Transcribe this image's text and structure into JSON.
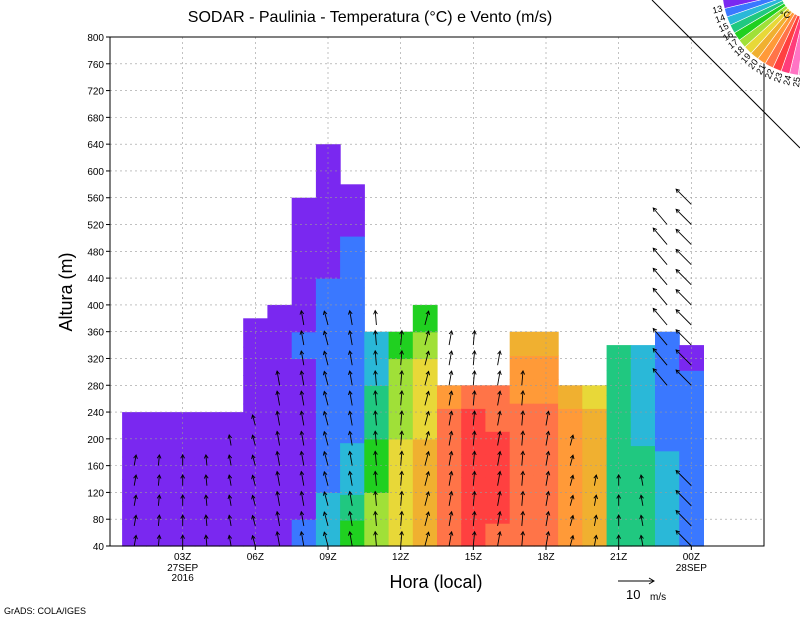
{
  "chart_data": {
    "type": "heatmap",
    "title": "SODAR - Paulinia - Temperatura (°C) e Vento (m/s)",
    "xlabel": "Hora (local)",
    "ylabel": "Altura (m)",
    "ylim": [
      40,
      800
    ],
    "xlim_hours": [
      -3,
      24
    ],
    "y_ticks": [
      40,
      80,
      120,
      160,
      200,
      240,
      280,
      320,
      360,
      400,
      440,
      480,
      520,
      560,
      600,
      640,
      680,
      720,
      760,
      800
    ],
    "x_ticks": [
      {
        "hour": 0,
        "label": "03Z",
        "sub": [
          "27SEP",
          "2016"
        ]
      },
      {
        "hour": 3,
        "label": "06Z",
        "sub": []
      },
      {
        "hour": 6,
        "label": "09Z",
        "sub": []
      },
      {
        "hour": 9,
        "label": "12Z",
        "sub": []
      },
      {
        "hour": 12,
        "label": "15Z",
        "sub": []
      },
      {
        "hour": 15,
        "label": "18Z",
        "sub": []
      },
      {
        "hour": 18,
        "label": "21Z",
        "sub": []
      },
      {
        "hour": 21,
        "label": "00Z",
        "sub": [
          "28SEP"
        ]
      }
    ],
    "grid": true,
    "colorbar": {
      "unit": "°C",
      "levels": [
        25,
        24,
        23,
        22,
        21,
        20,
        19,
        18,
        17,
        16,
        15,
        14,
        13
      ],
      "colors": [
        "#f3c0e0",
        "#ff74c4",
        "#ff3c7a",
        "#ff4040",
        "#ff7448",
        "#ff9a38",
        "#f0b030",
        "#e8d838",
        "#a0e038",
        "#20d020",
        "#20c880",
        "#2ab8d8",
        "#3a78ff",
        "#7a28f0",
        "#a020e0"
      ]
    },
    "temperature_columns": [
      {
        "hour": -2,
        "top": 240,
        "temps": [
          13.2,
          13.2,
          13.3,
          13.3,
          13.2,
          13.2
        ]
      },
      {
        "hour": -1,
        "top": 240,
        "temps": [
          13.2,
          13.2,
          13.3,
          13.3,
          13.2,
          13.2
        ]
      },
      {
        "hour": 0,
        "top": 240,
        "temps": [
          13.2,
          13.3,
          13.4,
          13.4,
          13.3,
          13.2
        ]
      },
      {
        "hour": 1,
        "top": 240,
        "temps": [
          13.3,
          13.4,
          13.4,
          13.4,
          13.3,
          13.2
        ]
      },
      {
        "hour": 2,
        "top": 240,
        "temps": [
          13.3,
          13.4,
          13.5,
          13.5,
          13.4,
          13.3
        ]
      },
      {
        "hour": 3,
        "top": 380,
        "temps": [
          13.4,
          13.5,
          13.6,
          13.6,
          13.5,
          13.4,
          13.3,
          13.2
        ]
      },
      {
        "hour": 4,
        "top": 400,
        "temps": [
          13.5,
          13.6,
          13.7,
          13.6,
          13.5,
          13.5,
          13.4,
          13.3,
          13.2
        ]
      },
      {
        "hour": 5,
        "top": 560,
        "temps": [
          14.3,
          13.8,
          13.9,
          13.9,
          13.8,
          13.8,
          13.9,
          14.0,
          13.9,
          13.8,
          13.5,
          13.2,
          13.1
        ]
      },
      {
        "hour": 6,
        "top": 640,
        "temps": [
          15.5,
          15.0,
          14.6,
          14.4,
          14.1,
          14.0,
          14.1,
          14.2,
          14.2,
          14.1,
          13.9,
          13.6,
          13.3,
          13.2,
          13.1
        ]
      },
      {
        "hour": 7,
        "top": 580,
        "temps": [
          17.2,
          16.4,
          15.8,
          15.3,
          14.9,
          14.6,
          14.5,
          14.6,
          14.5,
          14.4,
          14.2,
          14.0,
          13.7,
          13.5
        ]
      },
      {
        "hour": 8,
        "top": 360,
        "temps": [
          18.6,
          18.2,
          17.8,
          17.2,
          16.6,
          16.0,
          15.6,
          15.2
        ]
      },
      {
        "hour": 9,
        "top": 360,
        "temps": [
          19.6,
          19.5,
          19.4,
          19.2,
          18.9,
          18.6,
          18.2,
          17.8
        ]
      },
      {
        "hour": 10,
        "top": 400,
        "temps": [
          20.3,
          20.3,
          20.2,
          20.1,
          19.9,
          19.6,
          19.3,
          18.4,
          17.6
        ]
      },
      {
        "hour": 11,
        "top": 280,
        "temps": [
          22.5,
          22.7,
          22.8,
          22.8,
          22.6,
          22.3,
          21.8
        ]
      },
      {
        "hour": 12,
        "top": 280,
        "temps": [
          23.4,
          23.6,
          23.8,
          23.8,
          23.6,
          23.2,
          22.5
        ]
      },
      {
        "hour": 13,
        "top": 280,
        "temps": [
          22.9,
          23.0,
          23.1,
          23.1,
          23.0,
          22.6,
          22.0
        ]
      },
      {
        "hour": 14,
        "top": 360,
        "temps": [
          22.3,
          22.3,
          22.4,
          22.4,
          22.3,
          22.0,
          21.5,
          21.0,
          20.6
        ]
      },
      {
        "hour": 15,
        "top": 360,
        "temps": [
          22.2,
          22.3,
          22.4,
          22.4,
          22.3,
          22.0,
          21.5,
          21.0,
          20.6
        ]
      },
      {
        "hour": 16,
        "top": 280,
        "temps": [
          21.3,
          21.4,
          21.5,
          21.5,
          21.4,
          21.2,
          20.8
        ]
      },
      {
        "hour": 17,
        "top": 280,
        "temps": [
          20.0,
          20.1,
          20.2,
          20.2,
          20.1,
          20.0,
          19.8
        ]
      },
      {
        "hour": 18,
        "top": 340,
        "temps": [
          16.6,
          16.6,
          16.7,
          16.7,
          16.6,
          16.5,
          16.4,
          16.3
        ]
      },
      {
        "hour": 19,
        "top": 340,
        "temps": [
          16.0,
          16.0,
          16.0,
          16.0,
          15.9,
          15.8,
          15.7,
          15.6
        ]
      },
      {
        "hour": 20,
        "top": 360,
        "temps": [
          15.2,
          15.2,
          15.1,
          15.0,
          14.9,
          14.8,
          14.7,
          14.6,
          14.5
        ]
      },
      {
        "hour": 21,
        "top": 340,
        "temps": [
          14.6,
          14.5,
          14.5,
          14.4,
          14.4,
          14.3,
          14.2,
          13.8
        ]
      }
    ],
    "wind_columns": [
      {
        "hour": -2,
        "speed": 3,
        "dir": 10,
        "heights": [
          40,
          70,
          100,
          130,
          160
        ]
      },
      {
        "hour": -1,
        "speed": 3,
        "dir": 5,
        "heights": [
          40,
          70,
          100,
          130,
          160
        ]
      },
      {
        "hour": 0,
        "speed": 3,
        "dir": 0,
        "heights": [
          40,
          70,
          100,
          130,
          160
        ]
      },
      {
        "hour": 1,
        "speed": 3,
        "dir": -5,
        "heights": [
          40,
          70,
          100,
          130,
          160
        ]
      },
      {
        "hour": 2,
        "speed": 3,
        "dir": -10,
        "heights": [
          40,
          70,
          100,
          130,
          160,
          190
        ]
      },
      {
        "hour": 3,
        "speed": 3,
        "dir": -15,
        "heights": [
          40,
          70,
          100,
          130,
          160,
          190,
          220
        ]
      },
      {
        "hour": 4,
        "speed": 4,
        "dir": -10,
        "heights": [
          40,
          70,
          100,
          130,
          160,
          190,
          220,
          250,
          280
        ]
      },
      {
        "hour": 5,
        "speed": 4,
        "dir": -10,
        "heights": [
          40,
          70,
          100,
          130,
          160,
          190,
          220,
          250,
          280,
          310,
          340,
          370
        ]
      },
      {
        "hour": 6,
        "speed": 4,
        "dir": -15,
        "heights": [
          40,
          70,
          100,
          130,
          160,
          190,
          220,
          250,
          280,
          310,
          340,
          370
        ]
      },
      {
        "hour": 7,
        "speed": 4,
        "dir": -10,
        "heights": [
          40,
          70,
          100,
          130,
          160,
          190,
          220,
          250,
          280,
          310,
          340,
          370
        ]
      },
      {
        "hour": 8,
        "speed": 4,
        "dir": -5,
        "heights": [
          40,
          70,
          100,
          130,
          160,
          190,
          220,
          250,
          280,
          310,
          340,
          370
        ]
      },
      {
        "hour": 9,
        "speed": 4,
        "dir": 5,
        "heights": [
          40,
          70,
          100,
          130,
          160,
          190,
          220,
          250,
          280,
          310,
          340
        ]
      },
      {
        "hour": 10,
        "speed": 4,
        "dir": 15,
        "heights": [
          40,
          70,
          100,
          130,
          160,
          190,
          220,
          250,
          280,
          310,
          340,
          370
        ]
      },
      {
        "hour": 11,
        "speed": 4,
        "dir": 10,
        "heights": [
          40,
          70,
          100,
          130,
          160,
          190,
          220,
          250,
          280,
          310,
          340
        ]
      },
      {
        "hour": 12,
        "speed": 4,
        "dir": 5,
        "heights": [
          40,
          70,
          100,
          130,
          160,
          190,
          220,
          250,
          280,
          310,
          340
        ]
      },
      {
        "hour": 13,
        "speed": 4,
        "dir": 10,
        "heights": [
          40,
          70,
          100,
          130,
          160,
          190,
          220,
          250,
          280,
          310
        ]
      },
      {
        "hour": 14,
        "speed": 4,
        "dir": 5,
        "heights": [
          40,
          70,
          100,
          130,
          160,
          190,
          220,
          250,
          280
        ]
      },
      {
        "hour": 15,
        "speed": 4,
        "dir": 10,
        "heights": [
          40,
          70,
          100,
          130,
          160,
          190,
          220
        ]
      },
      {
        "hour": 16,
        "speed": 3,
        "dir": 15,
        "heights": [
          40,
          70,
          100,
          130,
          160,
          190
        ]
      },
      {
        "hour": 17,
        "speed": 3,
        "dir": 10,
        "heights": [
          40,
          70,
          100,
          130
        ]
      },
      {
        "hour": 18,
        "speed": 3,
        "dir": 0,
        "heights": [
          40,
          70,
          100,
          130
        ]
      },
      {
        "hour": 19,
        "speed": 3,
        "dir": -10,
        "heights": [
          40,
          70,
          100,
          130
        ]
      },
      {
        "hour": 20,
        "speed": 6,
        "dir": -40,
        "heights": [
          280,
          310,
          340,
          370,
          400,
          430,
          460,
          490,
          520
        ]
      },
      {
        "hour": 21,
        "speed": 6,
        "dir": -45,
        "heights": [
          40,
          70,
          100,
          130,
          280,
          310,
          340,
          370,
          400,
          430,
          460,
          490,
          520,
          550
        ]
      }
    ]
  },
  "scale_reference": {
    "value": "10",
    "unit": "m/s"
  },
  "footer": "GrADS: COLA/IGES"
}
